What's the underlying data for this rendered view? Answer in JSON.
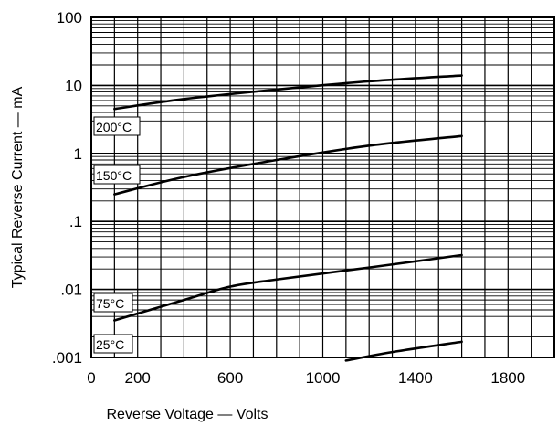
{
  "chart_data": {
    "type": "line",
    "title": "",
    "xlabel": "Reverse Voltage — Volts",
    "ylabel": "Typical Reverse Current — mA",
    "x_scale": "linear",
    "y_scale": "log",
    "xlim": [
      0,
      2000
    ],
    "ylim": [
      0.001,
      100
    ],
    "x_ticks": [
      {
        "value": 0,
        "label": "0"
      },
      {
        "value": 200,
        "label": "200"
      },
      {
        "value": 600,
        "label": "600"
      },
      {
        "value": 1000,
        "label": "1000"
      },
      {
        "value": 1400,
        "label": "1400"
      },
      {
        "value": 1800,
        "label": "1800"
      }
    ],
    "y_ticks": [
      {
        "value": 100,
        "label": "100"
      },
      {
        "value": 10,
        "label": "10"
      },
      {
        "value": 1,
        "label": "1"
      },
      {
        "value": 0.1,
        "label": ".1"
      },
      {
        "value": 0.01,
        "label": ".01"
      },
      {
        "value": 0.001,
        "label": ".001"
      }
    ],
    "grid": true,
    "series": [
      {
        "name": "200°C",
        "x": [
          100,
          400,
          800,
          1200,
          1600
        ],
        "y": [
          4.5,
          6.3,
          8.7,
          11.5,
          14
        ]
      },
      {
        "name": "150°C",
        "x": [
          100,
          400,
          800,
          1200,
          1600
        ],
        "y": [
          0.25,
          0.45,
          0.8,
          1.3,
          1.8
        ]
      },
      {
        "name": "75°C",
        "x": [
          100,
          400,
          600,
          800,
          1200,
          1600
        ],
        "y": [
          0.0035,
          0.007,
          0.011,
          0.014,
          0.021,
          0.032
        ]
      },
      {
        "name": "25°C",
        "x": [
          1100,
          1300,
          1600
        ],
        "y": [
          0.0009,
          0.0012,
          0.0017
        ]
      }
    ]
  }
}
